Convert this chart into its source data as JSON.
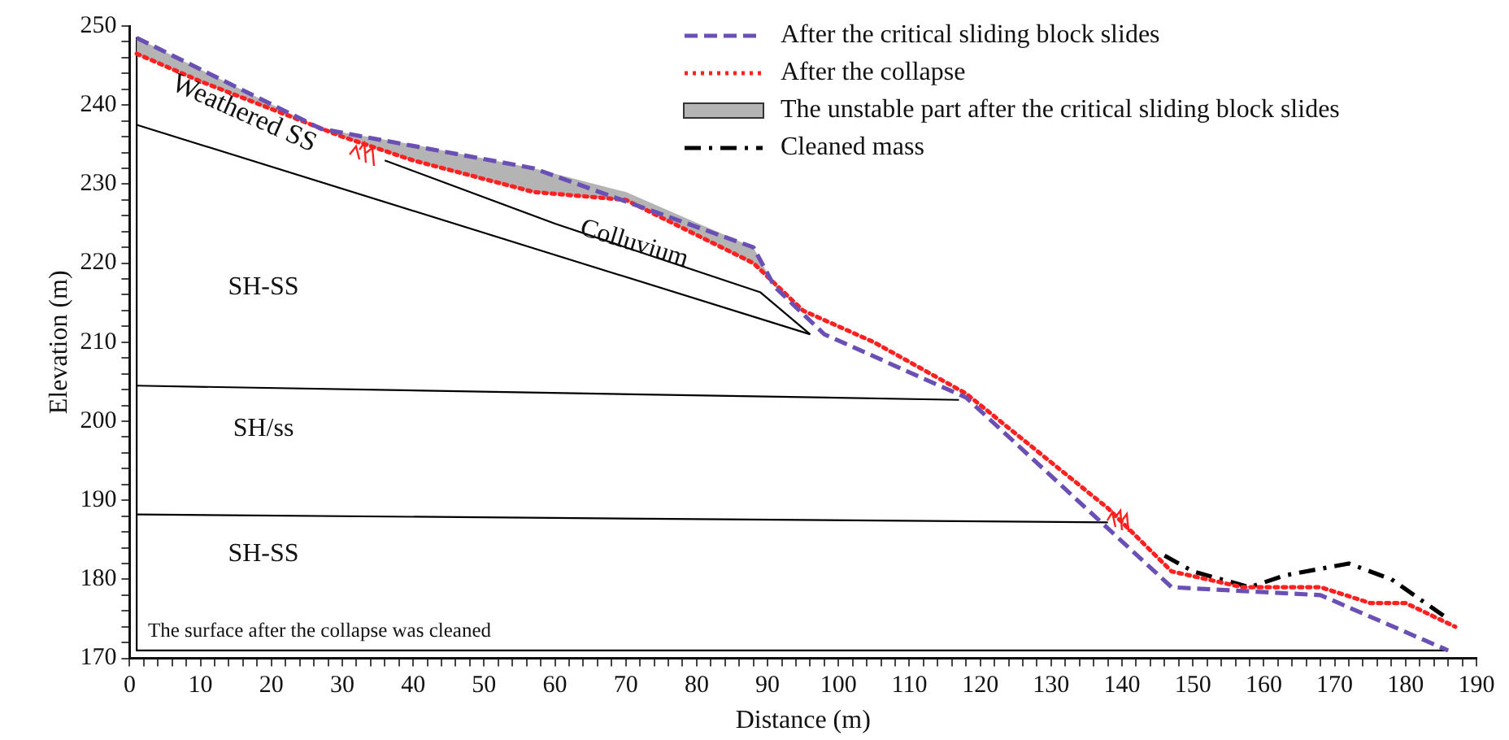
{
  "chart_data": {
    "type": "line",
    "xlabel": "Distance (m)",
    "ylabel": "Elevation (m)",
    "xlim": [
      0,
      190
    ],
    "ylim": [
      170,
      250
    ],
    "xticks": [
      0,
      {
        "value": 2,
        "label": null
      },
      {
        "value": 4,
        "label": null
      },
      {
        "value": 6,
        "label": null
      },
      {
        "value": 8,
        "label": null
      },
      10,
      {
        "value": 12,
        "label": null
      },
      {
        "value": 14,
        "label": null
      },
      {
        "value": 16,
        "label": null
      },
      {
        "value": 18,
        "label": null
      },
      20,
      {
        "value": 22,
        "label": null
      },
      {
        "value": 24,
        "label": null
      },
      {
        "value": 26,
        "label": null
      },
      {
        "value": 28,
        "label": null
      },
      30,
      {
        "value": 32,
        "label": null
      },
      {
        "value": 34,
        "label": null
      },
      {
        "value": 36,
        "label": null
      },
      {
        "value": 38,
        "label": null
      },
      40,
      {
        "value": 42,
        "label": null
      },
      {
        "value": 44,
        "label": null
      },
      {
        "value": 46,
        "label": null
      },
      {
        "value": 48,
        "label": null
      },
      50,
      {
        "value": 52,
        "label": null
      },
      {
        "value": 54,
        "label": null
      },
      {
        "value": 56,
        "label": null
      },
      {
        "value": 58,
        "label": null
      },
      60,
      {
        "value": 62,
        "label": null
      },
      {
        "value": 64,
        "label": null
      },
      {
        "value": 66,
        "label": null
      },
      {
        "value": 68,
        "label": null
      },
      70,
      {
        "value": 72,
        "label": null
      },
      {
        "value": 74,
        "label": null
      },
      {
        "value": 76,
        "label": null
      },
      {
        "value": 78,
        "label": null
      },
      80,
      {
        "value": 82,
        "label": null
      },
      {
        "value": 84,
        "label": null
      },
      {
        "value": 86,
        "label": null
      },
      {
        "value": 88,
        "label": null
      },
      90,
      {
        "value": 92,
        "label": null
      },
      {
        "value": 94,
        "label": null
      },
      {
        "value": 96,
        "label": null
      },
      {
        "value": 98,
        "label": null
      },
      100,
      {
        "value": 102,
        "label": null
      },
      {
        "value": 104,
        "label": null
      },
      {
        "value": 106,
        "label": null
      },
      {
        "value": 108,
        "label": null
      },
      110,
      {
        "value": 112,
        "label": null
      },
      {
        "value": 114,
        "label": null
      },
      {
        "value": 116,
        "label": null
      },
      {
        "value": 118,
        "label": null
      },
      120,
      {
        "value": 122,
        "label": null
      },
      {
        "value": 124,
        "label": null
      },
      {
        "value": 126,
        "label": null
      },
      {
        "value": 128,
        "label": null
      },
      130,
      {
        "value": 132,
        "label": null
      },
      {
        "value": 134,
        "label": null
      },
      {
        "value": 136,
        "label": null
      },
      {
        "value": 138,
        "label": null
      },
      140,
      {
        "value": 142,
        "label": null
      },
      {
        "value": 144,
        "label": null
      },
      {
        "value": 146,
        "label": null
      },
      {
        "value": 148,
        "label": null
      },
      150,
      {
        "value": 152,
        "label": null
      },
      {
        "value": 154,
        "label": null
      },
      {
        "value": 156,
        "label": null
      },
      {
        "value": 158,
        "label": null
      },
      160,
      {
        "value": 162,
        "label": null
      },
      {
        "value": 164,
        "label": null
      },
      {
        "value": 166,
        "label": null
      },
      {
        "value": 168,
        "label": null
      },
      170,
      {
        "value": 172,
        "label": null
      },
      {
        "value": 174,
        "label": null
      },
      {
        "value": 176,
        "label": null
      },
      {
        "value": 178,
        "label": null
      },
      180,
      {
        "value": 182,
        "label": null
      },
      {
        "value": 184,
        "label": null
      },
      {
        "value": 186,
        "label": null
      },
      {
        "value": 188,
        "label": null
      },
      190
    ],
    "yticks": [
      170,
      {
        "value": 172,
        "label": null
      },
      {
        "value": 174,
        "label": null
      },
      {
        "value": 176,
        "label": null
      },
      {
        "value": 178,
        "label": null
      },
      180,
      {
        "value": 182,
        "label": null
      },
      {
        "value": 184,
        "label": null
      },
      {
        "value": 186,
        "label": null
      },
      {
        "value": 188,
        "label": null
      },
      190,
      {
        "value": 192,
        "label": null
      },
      {
        "value": 194,
        "label": null
      },
      {
        "value": 196,
        "label": null
      },
      {
        "value": 198,
        "label": null
      },
      200,
      {
        "value": 202,
        "label": null
      },
      {
        "value": 204,
        "label": null
      },
      {
        "value": 206,
        "label": null
      },
      {
        "value": 208,
        "label": null
      },
      210,
      {
        "value": 212,
        "label": null
      },
      {
        "value": 214,
        "label": null
      },
      {
        "value": 216,
        "label": null
      },
      {
        "value": 218,
        "label": null
      },
      220,
      {
        "value": 222,
        "label": null
      },
      {
        "value": 224,
        "label": null
      },
      {
        "value": 226,
        "label": null
      },
      {
        "value": 228,
        "label": null
      },
      230,
      {
        "value": 232,
        "label": null
      },
      {
        "value": 234,
        "label": null
      },
      {
        "value": 236,
        "label": null
      },
      {
        "value": 238,
        "label": null
      },
      240,
      {
        "value": 242,
        "label": null
      },
      {
        "value": 244,
        "label": null
      },
      {
        "value": 246,
        "label": null
      },
      {
        "value": 248,
        "label": null
      },
      250
    ],
    "grid": false,
    "legend": "top right",
    "marker": "none",
    "series": [
      {
        "name": "After the critical sliding block slides",
        "color": "#6a4fb5",
        "line_style": "dashed",
        "x": [
          1,
          27,
          57,
          88,
          91,
          98,
          118,
          147,
          168,
          186
        ],
        "values": [
          248.5,
          237,
          232,
          222,
          217,
          211,
          203,
          179,
          178,
          171
        ]
      },
      {
        "name": "After the collapse",
        "color": "#ff2020",
        "line_style": "dotted",
        "x": [
          1,
          10,
          30,
          40,
          57,
          70,
          88,
          95,
          105,
          118,
          138,
          147,
          157,
          168,
          175,
          180,
          187
        ],
        "values": [
          246.5,
          243,
          236,
          233,
          229,
          228,
          220,
          214,
          210,
          203.5,
          189,
          181,
          179,
          179,
          177,
          177,
          174
        ]
      },
      {
        "name": "The unstable part after the critical sliding block slides",
        "type": "area",
        "color": "#b4b4b4",
        "x": [
          1,
          10,
          27,
          40,
          57,
          70,
          88,
          91,
          95
        ],
        "values": [
          248.5,
          244.5,
          237,
          235,
          232,
          229,
          222,
          217,
          214
        ]
      },
      {
        "name": "Cleaned mass",
        "color": "#000000",
        "line_style": "dashdot",
        "x": [
          146,
          150,
          158,
          163,
          172,
          178,
          186
        ],
        "values": [
          183,
          181,
          179,
          180.5,
          182,
          180,
          175
        ]
      },
      {
        "color": "#000000",
        "line_style": "solid",
        "x": [
          1,
          96
        ],
        "values": [
          237.5,
          211
        ]
      },
      {
        "color": "#000000",
        "line_style": "solid",
        "x": [
          36,
          60,
          89,
          96
        ],
        "values": [
          233,
          225,
          216.3,
          211
        ]
      },
      {
        "color": "#000000",
        "line_style": "solid",
        "x": [
          1,
          117
        ],
        "values": [
          204.5,
          202.7
        ]
      },
      {
        "color": "#000000",
        "line_style": "solid",
        "x": [
          1,
          138
        ],
        "values": [
          188.2,
          187.2
        ]
      },
      {
        "color": "#000000",
        "line_style": "solid",
        "x": [
          1,
          1,
          186
        ],
        "values": [
          248.5,
          171,
          171
        ]
      }
    ],
    "annotations": [
      "Weathered SS",
      "Colluvium",
      "SH-SS",
      "SH/ss",
      "SH-SS",
      "The surface after the collapse was cleaned"
    ]
  }
}
